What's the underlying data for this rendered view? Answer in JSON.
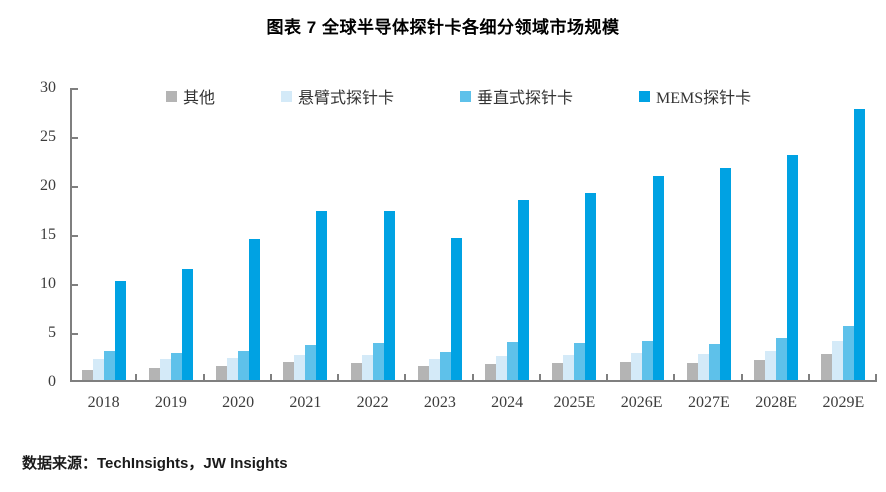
{
  "title": "图表 7 全球半导体探针卡各细分领域市场规模",
  "source": "数据来源：TechInsights，JW Insights",
  "colors": {
    "axis": "#7f7f7f",
    "axis_text": "#3c3c3c",
    "title_text": "#000000",
    "other": "#b4b4b4",
    "cantilever": "#d4eaf8",
    "vertical": "#5ec1ea",
    "mems": "#00a2e3"
  },
  "chart_data": {
    "type": "bar",
    "title": "图表 7 全球半导体探针卡各细分领域市场规模",
    "xlabel": "",
    "ylabel": "",
    "ylim": [
      0,
      30
    ],
    "yticks": [
      0,
      5,
      10,
      15,
      20,
      25,
      30
    ],
    "grid": false,
    "legend_position": "top-inside",
    "categories": [
      "2018",
      "2019",
      "2020",
      "2021",
      "2022",
      "2023",
      "2024",
      "2025E",
      "2026E",
      "2027E",
      "2028E",
      "2029E"
    ],
    "series": [
      {
        "key": "other",
        "name": "其他",
        "color": "#b4b4b4",
        "values": [
          1.0,
          1.2,
          1.4,
          1.8,
          1.7,
          1.4,
          1.6,
          1.7,
          1.8,
          1.7,
          2.1,
          2.7
        ]
      },
      {
        "key": "cantilever",
        "name": "悬臂式探针卡",
        "color": "#d4eaf8",
        "values": [
          2.2,
          2.2,
          2.3,
          2.6,
          2.6,
          2.2,
          2.5,
          2.6,
          2.8,
          2.7,
          3.0,
          4.0
        ]
      },
      {
        "key": "vertical",
        "name": "垂直式探针卡",
        "color": "#5ec1ea",
        "values": [
          3.0,
          2.8,
          3.0,
          3.6,
          3.8,
          2.9,
          3.9,
          3.8,
          4.0,
          3.7,
          4.3,
          5.5
        ]
      },
      {
        "key": "mems",
        "name": "MEMS探针卡",
        "color": "#00a2e3",
        "values": [
          10.2,
          11.4,
          14.5,
          17.4,
          17.4,
          14.6,
          18.5,
          19.2,
          21.0,
          21.8,
          23.1,
          27.8
        ]
      }
    ]
  }
}
